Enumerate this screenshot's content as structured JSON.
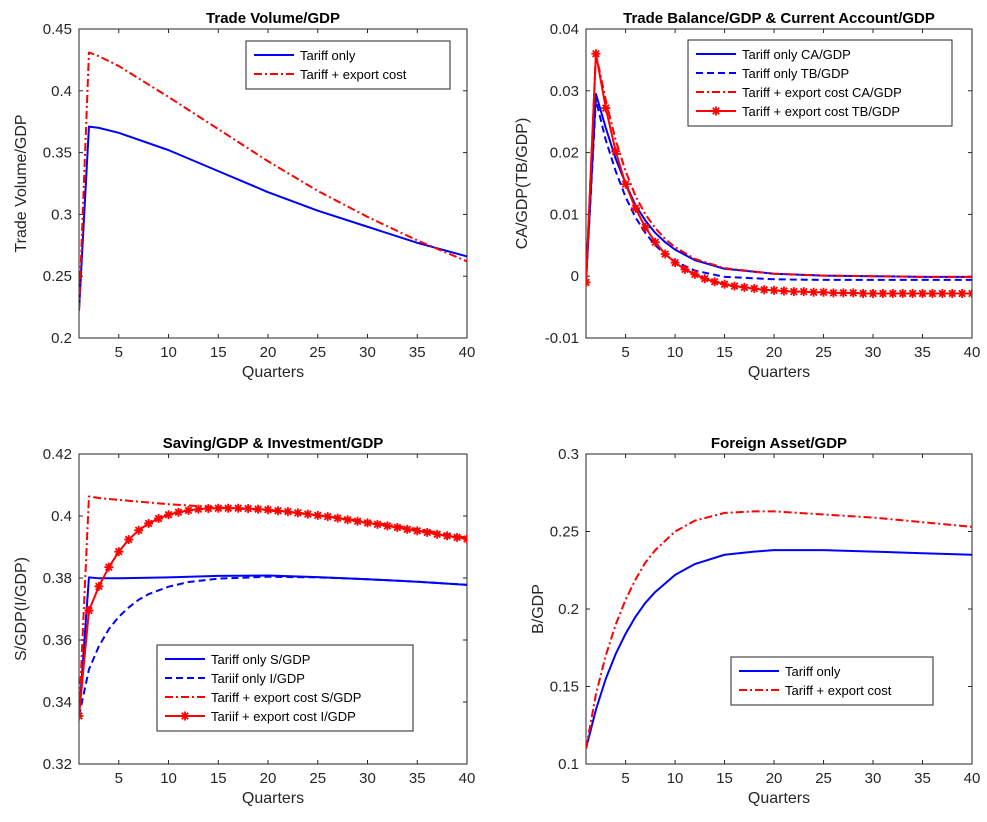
{
  "chart_data": [
    {
      "type": "line",
      "title": "Trade Volume/GDP",
      "xlabel": "Quarters",
      "ylabel": "Trade Volume/GDP",
      "xlim": [
        1,
        40
      ],
      "ylim": [
        0.2,
        0.45
      ],
      "xticks": [
        5,
        10,
        15,
        20,
        25,
        30,
        35,
        40
      ],
      "yticks": [
        0.2,
        0.25,
        0.3,
        0.35,
        0.4,
        0.45
      ],
      "ytick_labels": [
        "0.2",
        "0.25",
        "0.3",
        "0.35",
        "0.4",
        "0.45"
      ],
      "legend_position": "top-right",
      "series": [
        {
          "name": "Tariff only",
          "color": "#0000ff",
          "style": "solid",
          "marker": "none",
          "x": [
            1,
            2,
            3,
            5,
            10,
            15,
            20,
            25,
            30,
            35,
            40
          ],
          "y": [
            0.222,
            0.371,
            0.37,
            0.366,
            0.352,
            0.335,
            0.318,
            0.303,
            0.29,
            0.277,
            0.266
          ]
        },
        {
          "name": "Tariff + export cost",
          "color": "#ff0000",
          "style": "dashdot",
          "marker": "none",
          "x": [
            1,
            2,
            3,
            5,
            10,
            15,
            20,
            25,
            30,
            35,
            40
          ],
          "y": [
            0.222,
            0.431,
            0.428,
            0.42,
            0.395,
            0.369,
            0.343,
            0.319,
            0.298,
            0.279,
            0.262
          ]
        }
      ]
    },
    {
      "type": "line",
      "title": "Trade Balance/GDP & Current Account/GDP",
      "xlabel": "Quarters",
      "ylabel": "CA/GDP(TB/GDP)",
      "xlim": [
        1,
        40
      ],
      "ylim": [
        -0.01,
        0.04
      ],
      "xticks": [
        5,
        10,
        15,
        20,
        25,
        30,
        35,
        40
      ],
      "yticks": [
        -0.01,
        0,
        0.01,
        0.02,
        0.03,
        0.04
      ],
      "ytick_labels": [
        "-0.01",
        "0",
        "0.01",
        "0.02",
        "0.03",
        "0.04"
      ],
      "legend_position": "top-right",
      "series": [
        {
          "name": "Tariff only CA/GDP",
          "color": "#0000ff",
          "style": "solid",
          "marker": "none",
          "x": [
            1,
            2,
            3,
            4,
            5,
            6,
            7,
            8,
            9,
            10,
            12,
            15,
            20,
            25,
            30,
            35,
            40
          ],
          "y": [
            -0.001,
            0.0295,
            0.024,
            0.019,
            0.015,
            0.0115,
            0.009,
            0.007,
            0.0055,
            0.0043,
            0.0026,
            0.0012,
            0.0004,
            0.0001,
            0.0,
            -0.0001,
            -0.0001
          ]
        },
        {
          "name": "Tariff only TB/GDP",
          "color": "#0000ff",
          "style": "dashed",
          "marker": "none",
          "x": [
            1,
            2,
            3,
            4,
            5,
            6,
            7,
            8,
            9,
            10,
            12,
            15,
            20,
            25,
            30,
            35,
            40
          ],
          "y": [
            -0.001,
            0.0285,
            0.022,
            0.017,
            0.0128,
            0.0095,
            0.007,
            0.005,
            0.0035,
            0.0024,
            0.0009,
            -0.0001,
            -0.0005,
            -0.0006,
            -0.0006,
            -0.0006,
            -0.0006
          ]
        },
        {
          "name": "Tariff + export cost CA/GDP",
          "color": "#ff0000",
          "style": "dashdot",
          "marker": "none",
          "x": [
            1,
            2,
            3,
            4,
            5,
            6,
            7,
            8,
            9,
            10,
            12,
            15,
            20,
            25,
            30,
            35,
            40
          ],
          "y": [
            -0.001,
            0.036,
            0.0285,
            0.022,
            0.017,
            0.013,
            0.01,
            0.0078,
            0.006,
            0.0047,
            0.0028,
            0.0013,
            0.0004,
            0.0001,
            0.0,
            -0.0001,
            -0.0001
          ]
        },
        {
          "name": "Tariff + export cost TB/GDP",
          "color": "#ff0000",
          "style": "solid",
          "marker": "asterisk",
          "x": [
            1,
            2,
            3,
            4,
            5,
            6,
            7,
            8,
            9,
            10,
            11,
            12,
            13,
            14,
            15,
            16,
            17,
            18,
            19,
            20,
            21,
            22,
            23,
            24,
            25,
            26,
            27,
            28,
            29,
            30,
            31,
            32,
            33,
            34,
            35,
            36,
            37,
            38,
            39,
            40
          ],
          "y": [
            -0.001,
            0.036,
            0.0272,
            0.0202,
            0.0149,
            0.011,
            0.0079,
            0.0055,
            0.0036,
            0.0022,
            0.0011,
            0.0003,
            -0.0004,
            -0.0009,
            -0.0013,
            -0.0016,
            -0.0018,
            -0.002,
            -0.0022,
            -0.0023,
            -0.0024,
            -0.0025,
            -0.0025,
            -0.0026,
            -0.0026,
            -0.0027,
            -0.0027,
            -0.0027,
            -0.0028,
            -0.0028,
            -0.0028,
            -0.0028,
            -0.0028,
            -0.0028,
            -0.0028,
            -0.0028,
            -0.0028,
            -0.0028,
            -0.0028,
            -0.0028
          ]
        }
      ]
    },
    {
      "type": "line",
      "title": "Saving/GDP & Investment/GDP",
      "xlabel": "Quarters",
      "ylabel": "S/GDP(I/GDP)",
      "xlim": [
        1,
        40
      ],
      "ylim": [
        0.32,
        0.42
      ],
      "xticks": [
        5,
        10,
        15,
        20,
        25,
        30,
        35,
        40
      ],
      "yticks": [
        0.32,
        0.34,
        0.36,
        0.38,
        0.4,
        0.42
      ],
      "ytick_labels": [
        "0.32",
        "0.34",
        "0.36",
        "0.38",
        "0.4",
        "0.42"
      ],
      "legend_position": "bottom-center",
      "series": [
        {
          "name": "Tariff only S/GDP",
          "color": "#0000ff",
          "style": "solid",
          "marker": "none",
          "x": [
            1,
            2,
            3,
            5,
            10,
            15,
            20,
            25,
            30,
            35,
            40
          ],
          "y": [
            0.3355,
            0.3802,
            0.3799,
            0.3799,
            0.3802,
            0.3807,
            0.3808,
            0.3803,
            0.3796,
            0.3788,
            0.3778
          ]
        },
        {
          "name": "Tariif only I/GDP",
          "color": "#0000ff",
          "style": "dashed",
          "marker": "none",
          "x": [
            1,
            2,
            3,
            4,
            5,
            6,
            7,
            8,
            10,
            12,
            15,
            20,
            25,
            30,
            35,
            40
          ],
          "y": [
            0.3355,
            0.3505,
            0.358,
            0.3635,
            0.3675,
            0.3705,
            0.373,
            0.3748,
            0.3772,
            0.3787,
            0.3798,
            0.3804,
            0.3802,
            0.3796,
            0.3788,
            0.3778
          ]
        },
        {
          "name": "Tariff + export cost S/GDP",
          "color": "#ff0000",
          "style": "dashdot",
          "marker": "none",
          "x": [
            1,
            2,
            3,
            5,
            10,
            15,
            20,
            25,
            30,
            35,
            40
          ],
          "y": [
            0.3355,
            0.4063,
            0.4058,
            0.4052,
            0.4038,
            0.4028,
            0.4018,
            0.4003,
            0.3982,
            0.3958,
            0.393
          ]
        },
        {
          "name": "Tariif + export cost I/GDP",
          "color": "#ff0000",
          "style": "solid",
          "marker": "asterisk",
          "x": [
            1,
            2,
            3,
            4,
            5,
            6,
            7,
            8,
            9,
            10,
            11,
            12,
            13,
            14,
            15,
            16,
            17,
            18,
            19,
            20,
            21,
            22,
            23,
            24,
            25,
            26,
            27,
            28,
            29,
            30,
            31,
            32,
            33,
            34,
            35,
            36,
            37,
            38,
            39,
            40
          ],
          "y": [
            0.3355,
            0.3695,
            0.3773,
            0.3835,
            0.3885,
            0.3924,
            0.3954,
            0.3976,
            0.3992,
            0.4004,
            0.4012,
            0.4018,
            0.4022,
            0.4024,
            0.4025,
            0.4025,
            0.4025,
            0.4024,
            0.4022,
            0.402,
            0.4017,
            0.4014,
            0.401,
            0.4006,
            0.4002,
            0.3998,
            0.3993,
            0.3988,
            0.3983,
            0.3978,
            0.3973,
            0.3968,
            0.3963,
            0.3957,
            0.3952,
            0.3947,
            0.3941,
            0.3936,
            0.3931,
            0.3926
          ]
        }
      ]
    },
    {
      "type": "line",
      "title": "Foreign Asset/GDP",
      "xlabel": "Quarters",
      "ylabel": "B/GDP",
      "xlim": [
        1,
        40
      ],
      "ylim": [
        0.1,
        0.3
      ],
      "xticks": [
        5,
        10,
        15,
        20,
        25,
        30,
        35,
        40
      ],
      "yticks": [
        0.1,
        0.15,
        0.2,
        0.25,
        0.3
      ],
      "ytick_labels": [
        "0.1",
        "0.15",
        "0.2",
        "0.25",
        "0.3"
      ],
      "legend_position": "bottom-right",
      "series": [
        {
          "name": "Tariff only",
          "color": "#0000ff",
          "style": "solid",
          "marker": "none",
          "x": [
            1,
            2,
            3,
            4,
            5,
            6,
            7,
            8,
            10,
            12,
            15,
            18,
            20,
            25,
            30,
            35,
            40
          ],
          "y": [
            0.11,
            0.135,
            0.155,
            0.171,
            0.184,
            0.195,
            0.204,
            0.211,
            0.222,
            0.229,
            0.235,
            0.237,
            0.238,
            0.238,
            0.237,
            0.236,
            0.235
          ]
        },
        {
          "name": "Tariff + export cost",
          "color": "#ff0000",
          "style": "dashdot",
          "marker": "none",
          "x": [
            1,
            2,
            3,
            4,
            5,
            6,
            7,
            8,
            10,
            12,
            15,
            18,
            20,
            25,
            30,
            35,
            40
          ],
          "y": [
            0.11,
            0.145,
            0.17,
            0.19,
            0.206,
            0.219,
            0.23,
            0.238,
            0.25,
            0.257,
            0.262,
            0.263,
            0.263,
            0.261,
            0.259,
            0.256,
            0.253
          ]
        }
      ]
    }
  ]
}
